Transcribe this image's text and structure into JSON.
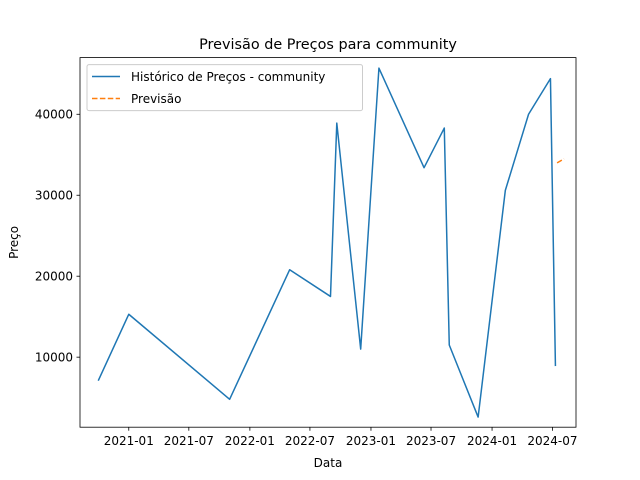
{
  "chart_data": {
    "type": "line",
    "title": "Previsão de Preços para community",
    "xlabel": "Data",
    "ylabel": "Preço",
    "x_type": "date",
    "xlim": [
      "2020-08-07",
      "2024-09-10"
    ],
    "ylim": [
      1350,
      47000
    ],
    "x_ticks": [
      "2021-01",
      "2021-07",
      "2022-01",
      "2022-07",
      "2023-01",
      "2023-07",
      "2024-01",
      "2024-07"
    ],
    "y_ticks": [
      10000,
      20000,
      30000,
      40000
    ],
    "grid": false,
    "legend_position": "upper left",
    "series": [
      {
        "name": "Histórico de Preços - community",
        "color": "#1f77b4",
        "style": "solid",
        "x": [
          "2020-10-01",
          "2021-01-01",
          "2021-11-01",
          "2022-05-01",
          "2022-09-01",
          "2022-09-20",
          "2022-12-01",
          "2023-01-25",
          "2023-06-10",
          "2023-08-10",
          "2023-08-25",
          "2023-11-20",
          "2024-02-10",
          "2024-04-20",
          "2024-06-25",
          "2024-07-10"
        ],
        "y": [
          7100,
          15300,
          4800,
          20800,
          17500,
          38900,
          11000,
          45700,
          33400,
          38300,
          11500,
          2600,
          30600,
          40000,
          44400,
          8900
        ]
      },
      {
        "name": "Previsão",
        "color": "#ff7f0e",
        "style": "dashed",
        "x": [
          "2024-07-15",
          "2024-08-05"
        ],
        "y": [
          34000,
          34500
        ]
      }
    ]
  }
}
